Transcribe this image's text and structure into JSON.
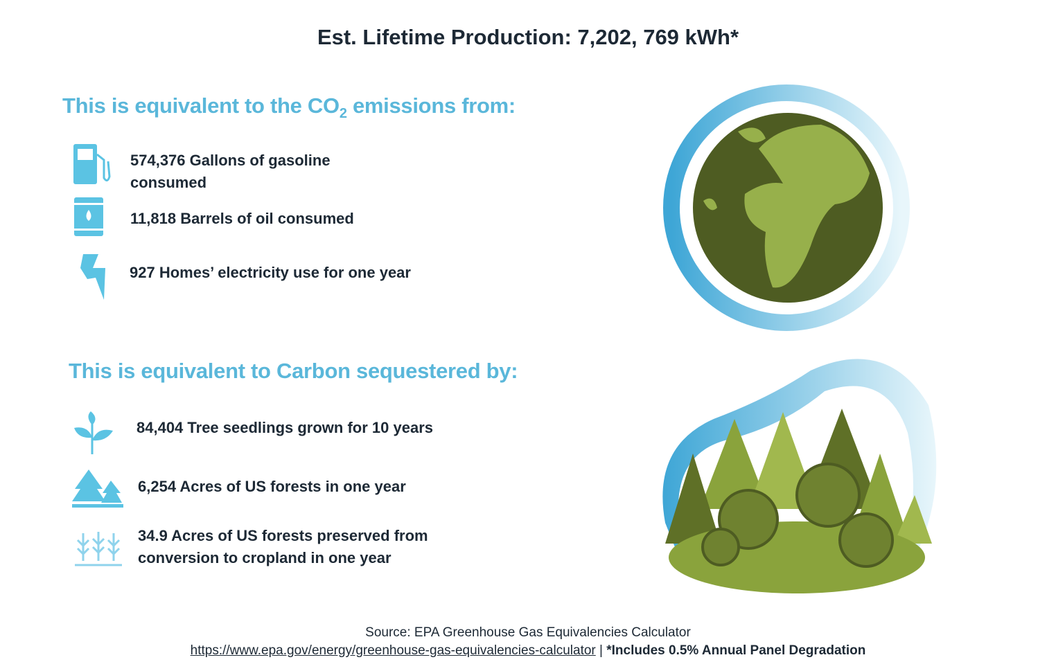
{
  "header": {
    "title": "Est. Lifetime Production: 7,202, 769 kWh*"
  },
  "emissions": {
    "heading": {
      "before": "This is equivalent to the CO",
      "subscript": "2",
      "after": " emissions from:"
    },
    "items": [
      "574,376 Gallons of gasoline consumed",
      "11,818 Barrels of oil consumed",
      "927 Homes’ electricity use for one year"
    ]
  },
  "sequestration": {
    "heading": "This is equivalent to Carbon sequestered by:",
    "items": [
      "84,404 Tree seedlings grown for 10 years",
      "6,254 Acres of US forests in one year",
      "34.9 Acres of US forests preserved from conversion to cropland in one year"
    ]
  },
  "footer": {
    "source": "Source: EPA Greenhouse Gas Equivalencies Calculator",
    "link": "https://www.epa.gov/energy/greenhouse-gas-equivalencies-calculator",
    "separator": "|",
    "note": "*Includes 0.5% Annual Panel Degradation"
  }
}
